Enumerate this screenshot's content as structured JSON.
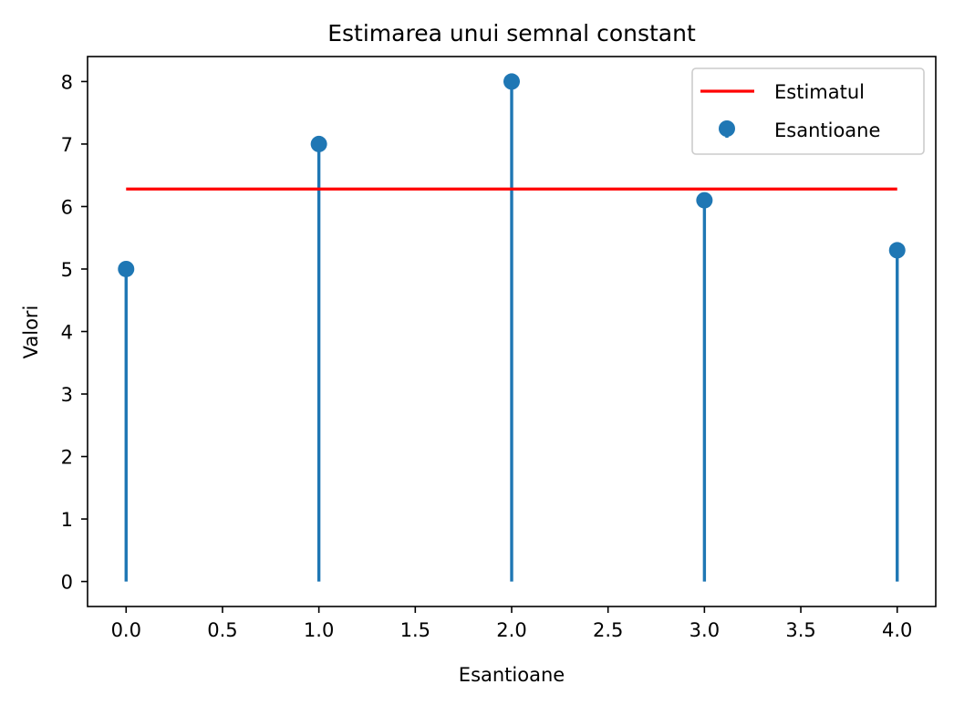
{
  "chart_data": {
    "type": "stem",
    "title": "Estimarea unui semnal constant",
    "xlabel": "Esantioane",
    "ylabel": "Valori",
    "xlim": [
      -0.2,
      4.2
    ],
    "ylim": [
      -0.4,
      8.4
    ],
    "xticks": [
      0.0,
      0.5,
      1.0,
      1.5,
      2.0,
      2.5,
      3.0,
      3.5,
      4.0
    ],
    "xtick_labels": [
      "0.0",
      "0.5",
      "1.0",
      "1.5",
      "2.0",
      "2.5",
      "3.0",
      "3.5",
      "4.0"
    ],
    "yticks": [
      0,
      1,
      2,
      3,
      4,
      5,
      6,
      7,
      8
    ],
    "ytick_labels": [
      "0",
      "1",
      "2",
      "3",
      "4",
      "5",
      "6",
      "7",
      "8"
    ],
    "grid": false,
    "legend_position": "top-right",
    "series": [
      {
        "name": "Esantioane",
        "kind": "stem",
        "color": "#1f77b4",
        "x": [
          0,
          1,
          2,
          3,
          4
        ],
        "y": [
          5.0,
          7.0,
          8.0,
          6.1,
          5.3
        ]
      },
      {
        "name": "Estimatul",
        "kind": "line",
        "color": "#ff0000",
        "x": [
          0,
          4
        ],
        "y": [
          6.28,
          6.28
        ]
      }
    ],
    "legend": [
      {
        "label": "Estimatul",
        "kind": "line",
        "color": "#ff0000"
      },
      {
        "label": "Esantioane",
        "kind": "stem",
        "color": "#1f77b4"
      }
    ]
  }
}
